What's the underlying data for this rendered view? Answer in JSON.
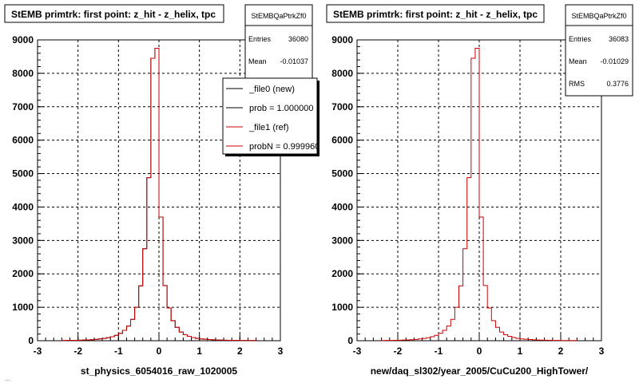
{
  "chart_data": [
    {
      "type": "histogram",
      "title": "StEMB primtrk: first point: z_hit - z_helix, tpc",
      "xlabel": "st_physics_6054016_raw_1020005",
      "ylabel": "",
      "xlim": [
        -3,
        3
      ],
      "ylim": [
        0,
        9000
      ],
      "xticks": [
        "-3",
        "-2",
        "-1",
        "0",
        "1",
        "2",
        "3"
      ],
      "yticks": [
        "0",
        "1000",
        "2000",
        "3000",
        "4000",
        "5000",
        "6000",
        "7000",
        "8000",
        "9000"
      ],
      "grid": true,
      "bin_edges_x": [
        -2.4,
        -2.3,
        -2.2,
        -2.1,
        -2.0,
        -1.9,
        -1.8,
        -1.7,
        -1.6,
        -1.5,
        -1.4,
        -1.3,
        -1.2,
        -1.1,
        -1.0,
        -0.9,
        -0.8,
        -0.7,
        -0.6,
        -0.5,
        -0.4,
        -0.3,
        -0.2,
        -0.1,
        0.0,
        0.1,
        0.2,
        0.3,
        0.4,
        0.5,
        0.6,
        0.7,
        0.8,
        0.9,
        1.0,
        1.1,
        1.2,
        1.3,
        1.4,
        1.5,
        1.6,
        1.7,
        1.8,
        1.9,
        2.0,
        2.1,
        2.2,
        2.3,
        2.4
      ],
      "series": [
        {
          "name": "_file0 (new)",
          "color": "#000000",
          "values": [
            5,
            8,
            10,
            12,
            15,
            20,
            25,
            30,
            40,
            55,
            70,
            90,
            120,
            160,
            220,
            310,
            440,
            640,
            1000,
            1640,
            2750,
            4880,
            8450,
            8750,
            3700,
            1650,
            980,
            600,
            400,
            260,
            180,
            130,
            95,
            70,
            55,
            45,
            35,
            28,
            22,
            18,
            15,
            12,
            10,
            8,
            7,
            6,
            5,
            5
          ]
        },
        {
          "name": "_file1 (ref)",
          "color": "#cc0000",
          "values": [
            5,
            8,
            10,
            12,
            15,
            20,
            25,
            30,
            40,
            55,
            70,
            90,
            120,
            160,
            220,
            310,
            440,
            640,
            1000,
            1640,
            2750,
            4880,
            8450,
            8750,
            3700,
            1650,
            980,
            600,
            400,
            260,
            180,
            130,
            95,
            70,
            55,
            45,
            35,
            28,
            22,
            18,
            15,
            12,
            10,
            8,
            7,
            6,
            5,
            5
          ]
        }
      ],
      "stats": {
        "name": "StEMBQaPtrkZf0",
        "rows": [
          {
            "label": "Entries",
            "value": "36080"
          },
          {
            "label": "Mean",
            "value": "-0.01037"
          }
        ]
      },
      "legend": {
        "position": "top-right",
        "entries": [
          {
            "label": "_file0 (new)",
            "color": "#000000"
          },
          {
            "label": "prob = 1.000000",
            "color": "#000000"
          },
          {
            "label": "_file1 (ref)",
            "color": "#cc0000"
          },
          {
            "label": "probN = 0.999960",
            "color": "#cc0000"
          }
        ]
      }
    },
    {
      "type": "histogram",
      "title": "StEMB primtrk: first point: z_hit - z_helix, tpc",
      "xlabel": "new/daq_sl302/year_2005/CuCu200_HighTower/",
      "ylabel": "",
      "xlim": [
        -3,
        3
      ],
      "ylim": [
        0,
        9000
      ],
      "xticks": [
        "-3",
        "-2",
        "-1",
        "0",
        "1",
        "2",
        "3"
      ],
      "yticks": [
        "0",
        "1000",
        "2000",
        "3000",
        "4000",
        "5000",
        "6000",
        "7000",
        "8000",
        "9000"
      ],
      "grid": true,
      "bin_edges_x": [
        -2.4,
        -2.3,
        -2.2,
        -2.1,
        -2.0,
        -1.9,
        -1.8,
        -1.7,
        -1.6,
        -1.5,
        -1.4,
        -1.3,
        -1.2,
        -1.1,
        -1.0,
        -0.9,
        -0.8,
        -0.7,
        -0.6,
        -0.5,
        -0.4,
        -0.3,
        -0.2,
        -0.1,
        0.0,
        0.1,
        0.2,
        0.3,
        0.4,
        0.5,
        0.6,
        0.7,
        0.8,
        0.9,
        1.0,
        1.1,
        1.2,
        1.3,
        1.4,
        1.5,
        1.6,
        1.7,
        1.8,
        1.9,
        2.0,
        2.1,
        2.2,
        2.3,
        2.4
      ],
      "series": [
        {
          "color": "#cc0000",
          "values": [
            5,
            8,
            10,
            12,
            15,
            20,
            25,
            30,
            40,
            55,
            70,
            90,
            120,
            160,
            220,
            310,
            440,
            640,
            1000,
            1640,
            2750,
            4880,
            8450,
            8750,
            3700,
            1650,
            980,
            600,
            400,
            260,
            180,
            130,
            95,
            70,
            55,
            45,
            35,
            28,
            22,
            18,
            15,
            12,
            10,
            8,
            7,
            6,
            5,
            5
          ]
        }
      ],
      "stats": {
        "name": "StEMBQaPtrkZf0",
        "rows": [
          {
            "label": "Entries",
            "value": "36083"
          },
          {
            "label": "Mean",
            "value": "-0.01029"
          },
          {
            "label": "RMS",
            "value": "0.3776"
          }
        ]
      },
      "legend": null
    }
  ],
  "footer": "..."
}
